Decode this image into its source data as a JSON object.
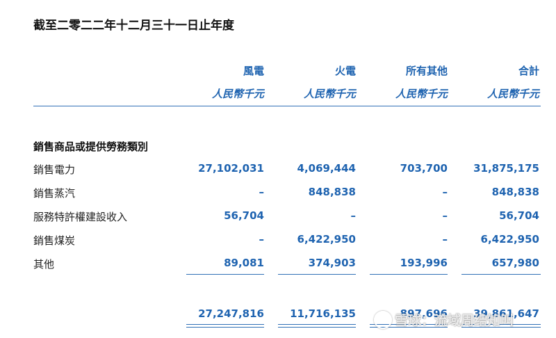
{
  "period_title": "截至二零二二年十二月三十一日止年度",
  "columns": [
    {
      "label": "風電",
      "unit": "人民幣千元"
    },
    {
      "label": "火電",
      "unit": "人民幣千元"
    },
    {
      "label": "所有其他",
      "unit": "人民幣千元"
    },
    {
      "label": "合計",
      "unit": "人民幣千元"
    }
  ],
  "section_title": "銷售商品或提供勞務類別",
  "rows": [
    {
      "label": "銷售電力",
      "values": [
        "27,102,031",
        "4,069,444",
        "703,700",
        "31,875,175"
      ]
    },
    {
      "label": "銷售蒸汽",
      "values": [
        "–",
        "848,838",
        "–",
        "848,838"
      ]
    },
    {
      "label": "服務特許權建設收入",
      "values": [
        "56,704",
        "–",
        "–",
        "56,704"
      ]
    },
    {
      "label": "銷售煤炭",
      "values": [
        "–",
        "6,422,950",
        "–",
        "6,422,950"
      ]
    },
    {
      "label": "其他",
      "values": [
        "89,081",
        "374,903",
        "193,996",
        "657,980"
      ]
    }
  ],
  "totals": [
    "27,247,816",
    "11,716,135",
    "897,696",
    "39,861,647"
  ],
  "watermark": {
    "text": "雪球：流域周结知叫",
    "icon": "snowball-logo-icon"
  }
}
